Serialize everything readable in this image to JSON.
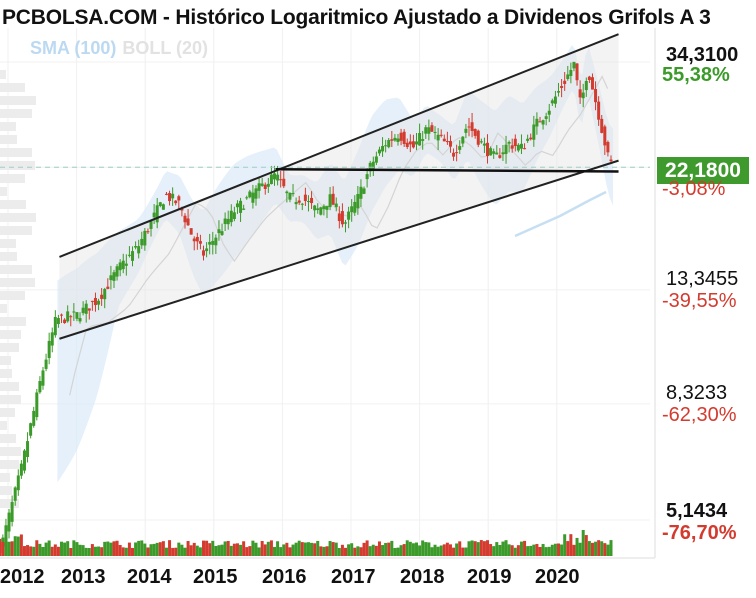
{
  "title": "PCBOLSA.COM - Histórico Logaritmico Ajustado a Dividenos Grifols A 3",
  "legend": {
    "sma": "SMA (100)",
    "boll": "BOLL (20)"
  },
  "colors": {
    "up": "#3c9a2a",
    "down": "#d33b2f",
    "band": "#dcebf8",
    "sma": "#c6dff3",
    "channel": "#222222"
  },
  "current_price": "22,1800",
  "price_levels": [
    {
      "price": "34,3100",
      "pct": "55,38%",
      "style": "pos"
    },
    {
      "price": "",
      "pct": "-3,08%",
      "style": "neg"
    },
    {
      "price": "13,3455",
      "pct": "-39,55%",
      "style": "neg"
    },
    {
      "price": "8,3233",
      "pct": "-62,30%",
      "style": "neg"
    },
    {
      "price": "5,1434",
      "pct": "-76,70%",
      "style": "negb"
    }
  ],
  "chart_data": {
    "type": "candlestick",
    "y_scale": "log",
    "x_ticks": [
      "2012",
      "2013",
      "2014",
      "2015",
      "2016",
      "2017",
      "2018",
      "2019",
      "2020"
    ],
    "y_ticks": [
      34.31,
      22.18,
      13.3455,
      8.3233,
      5.1434
    ],
    "current_value": 22.18,
    "channel_upper": [
      {
        "x": 2012.75,
        "y": 15.3
      },
      {
        "x": 2020.9,
        "y": 38.5
      }
    ],
    "channel_lower": [
      {
        "x": 2012.75,
        "y": 10.9
      },
      {
        "x": 2020.9,
        "y": 22.8
      }
    ],
    "support_line": [
      {
        "x": 2015.9,
        "y": 22.0
      },
      {
        "x": 2020.9,
        "y": 21.8
      }
    ],
    "price_path": [
      {
        "x": 2011.9,
        "y": 4.6
      },
      {
        "x": 2012.2,
        "y": 6.4
      },
      {
        "x": 2012.5,
        "y": 9.5
      },
      {
        "x": 2012.7,
        "y": 11.8
      },
      {
        "x": 2013.0,
        "y": 12.0
      },
      {
        "x": 2013.3,
        "y": 12.8
      },
      {
        "x": 2013.6,
        "y": 14.5
      },
      {
        "x": 2013.9,
        "y": 16.0
      },
      {
        "x": 2014.1,
        "y": 17.8
      },
      {
        "x": 2014.3,
        "y": 19.8
      },
      {
        "x": 2014.5,
        "y": 19.0
      },
      {
        "x": 2014.7,
        "y": 16.5
      },
      {
        "x": 2014.85,
        "y": 15.5
      },
      {
        "x": 2015.0,
        "y": 16.5
      },
      {
        "x": 2015.3,
        "y": 18.5
      },
      {
        "x": 2015.5,
        "y": 19.5
      },
      {
        "x": 2015.7,
        "y": 20.5
      },
      {
        "x": 2015.9,
        "y": 21.5
      },
      {
        "x": 2016.1,
        "y": 19.5
      },
      {
        "x": 2016.3,
        "y": 19.5
      },
      {
        "x": 2016.5,
        "y": 18.5
      },
      {
        "x": 2016.7,
        "y": 19.5
      },
      {
        "x": 2016.9,
        "y": 17.5
      },
      {
        "x": 2017.1,
        "y": 19.5
      },
      {
        "x": 2017.3,
        "y": 22.5
      },
      {
        "x": 2017.5,
        "y": 24.5
      },
      {
        "x": 2017.7,
        "y": 25.5
      },
      {
        "x": 2017.9,
        "y": 24.0
      },
      {
        "x": 2018.1,
        "y": 26.0
      },
      {
        "x": 2018.3,
        "y": 25.0
      },
      {
        "x": 2018.5,
        "y": 23.5
      },
      {
        "x": 2018.7,
        "y": 26.5
      },
      {
        "x": 2018.9,
        "y": 24.5
      },
      {
        "x": 2019.1,
        "y": 23.0
      },
      {
        "x": 2019.3,
        "y": 24.5
      },
      {
        "x": 2019.5,
        "y": 24.0
      },
      {
        "x": 2019.7,
        "y": 26.5
      },
      {
        "x": 2019.9,
        "y": 28.5
      },
      {
        "x": 2020.1,
        "y": 31.5
      },
      {
        "x": 2020.25,
        "y": 34.0
      },
      {
        "x": 2020.35,
        "y": 28.5
      },
      {
        "x": 2020.45,
        "y": 33.5
      },
      {
        "x": 2020.6,
        "y": 28.0
      },
      {
        "x": 2020.75,
        "y": 23.0
      },
      {
        "x": 2020.82,
        "y": 22.18
      }
    ]
  }
}
